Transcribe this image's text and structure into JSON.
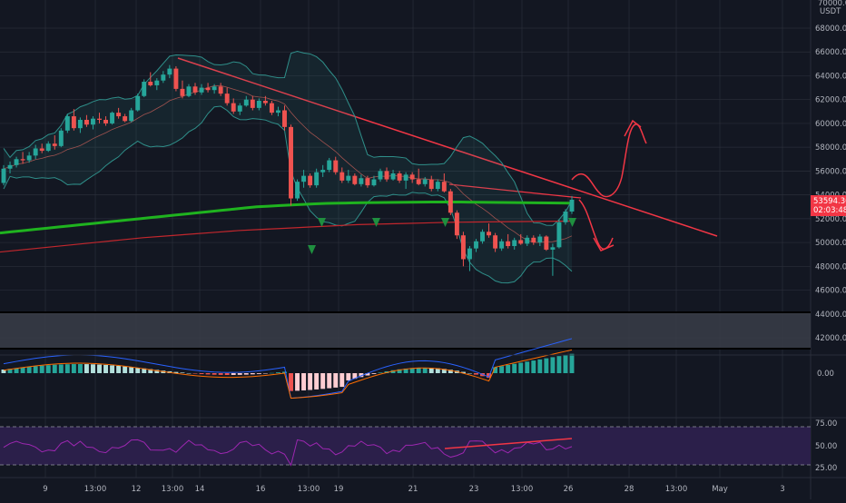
{
  "colors": {
    "background": "#131722",
    "grid": "#2a2e39",
    "up": "#26a69a",
    "down": "#ef5350",
    "trendline": "#f23645",
    "ma_green": "#1fb31f",
    "ma_red": "#c2272d",
    "bollinger": "#2f8f8a",
    "rsi_band": "#2b1f4a",
    "rsi_line": "#9c27b0",
    "price_badge": "#f23645",
    "signal_marker": "#1f8f3f"
  },
  "price_axis": {
    "title_lines": [
      "70000.00",
      "USDT"
    ],
    "ticks": [
      "68000.00",
      "66000.00",
      "64000.00",
      "62000.00",
      "60000.00",
      "58000.00",
      "56000.00",
      "54000.00",
      "52000.00",
      "50000.00",
      "48000.00",
      "46000.00",
      "44000.00",
      "42000.00"
    ],
    "current_price": "53594.36",
    "countdown": "02:03:48"
  },
  "macd_axis": {
    "ticks": [
      "0.00"
    ]
  },
  "rsi_axis": {
    "ticks": [
      "75.00",
      "50.00",
      "25.00"
    ]
  },
  "time_axis": {
    "ticks": [
      "9",
      "13:00",
      "12",
      "13:00",
      "14",
      "16",
      "13:00",
      "19",
      "21",
      "23",
      "13:00",
      "26",
      "28",
      "13:00",
      "May",
      "3"
    ]
  },
  "chart_data": {
    "type": "candlestick",
    "instrument_quote": "USDT",
    "ylim": [
      41000,
      70000
    ],
    "candles": [
      [
        55000,
        56500,
        54800,
        56200
      ],
      [
        56200,
        56800,
        55800,
        56500
      ],
      [
        56500,
        57200,
        56300,
        57000
      ],
      [
        57000,
        57600,
        56600,
        56900
      ],
      [
        56900,
        57600,
        56700,
        57300
      ],
      [
        57300,
        58200,
        57000,
        57900
      ],
      [
        57900,
        58300,
        57500,
        57700
      ],
      [
        57700,
        58500,
        57600,
        58300
      ],
      [
        58300,
        59000,
        57800,
        58100
      ],
      [
        58100,
        59600,
        58000,
        59400
      ],
      [
        59400,
        60800,
        59200,
        60600
      ],
      [
        60600,
        61200,
        59400,
        59600
      ],
      [
        59600,
        60500,
        59200,
        60300
      ],
      [
        60300,
        60700,
        59700,
        59900
      ],
      [
        59900,
        60600,
        59500,
        60400
      ],
      [
        60400,
        60900,
        60000,
        60300
      ],
      [
        60300,
        60600,
        59800,
        60000
      ],
      [
        60000,
        61000,
        59900,
        60900
      ],
      [
        60900,
        61300,
        60400,
        60600
      ],
      [
        60600,
        60800,
        60100,
        60200
      ],
      [
        60200,
        61300,
        60100,
        61100
      ],
      [
        61100,
        62500,
        61000,
        62300
      ],
      [
        62300,
        63700,
        62200,
        63500
      ],
      [
        63500,
        64300,
        63100,
        63200
      ],
      [
        63200,
        63800,
        62800,
        63600
      ],
      [
        63600,
        64400,
        63400,
        64100
      ],
      [
        64100,
        64900,
        63800,
        64600
      ],
      [
        64600,
        64800,
        62700,
        62900
      ],
      [
        62900,
        63600,
        62100,
        62300
      ],
      [
        62300,
        63300,
        62200,
        63100
      ],
      [
        63100,
        63400,
        62400,
        62600
      ],
      [
        62600,
        63300,
        62400,
        63000
      ],
      [
        63000,
        63400,
        62600,
        62800
      ],
      [
        62800,
        63300,
        62500,
        63100
      ],
      [
        63100,
        63400,
        62300,
        62500
      ],
      [
        62500,
        63000,
        61500,
        61700
      ],
      [
        61700,
        62100,
        60800,
        61000
      ],
      [
        61000,
        61700,
        60700,
        61500
      ],
      [
        61500,
        62300,
        61400,
        62000
      ],
      [
        62000,
        62300,
        61100,
        61300
      ],
      [
        61300,
        62100,
        61100,
        61900
      ],
      [
        61900,
        62300,
        61500,
        61700
      ],
      [
        61700,
        61900,
        60700,
        60900
      ],
      [
        60900,
        61400,
        60600,
        61100
      ],
      [
        61100,
        61500,
        59400,
        59700
      ],
      [
        59700,
        59900,
        53100,
        53700
      ],
      [
        53700,
        55300,
        53500,
        55100
      ],
      [
        55100,
        56100,
        54600,
        55600
      ],
      [
        55600,
        55800,
        54600,
        54800
      ],
      [
        54800,
        56200,
        54600,
        55900
      ],
      [
        55900,
        56500,
        55500,
        56100
      ],
      [
        56100,
        57100,
        55900,
        56900
      ],
      [
        56900,
        57200,
        55700,
        55900
      ],
      [
        55900,
        56300,
        55000,
        55200
      ],
      [
        55200,
        56100,
        55000,
        55600
      ],
      [
        55600,
        55800,
        54800,
        54900
      ],
      [
        54900,
        55700,
        54700,
        55400
      ],
      [
        55400,
        55600,
        54600,
        54800
      ],
      [
        54800,
        55600,
        54700,
        55300
      ],
      [
        55300,
        56200,
        55100,
        56000
      ],
      [
        56000,
        56300,
        55100,
        55300
      ],
      [
        55300,
        56100,
        55200,
        55800
      ],
      [
        55800,
        56000,
        55000,
        55200
      ],
      [
        55200,
        55900,
        54500,
        55700
      ],
      [
        55700,
        55900,
        55000,
        55300
      ],
      [
        55300,
        56200,
        54800,
        54900
      ],
      [
        54900,
        55500,
        54700,
        55300
      ],
      [
        55300,
        55600,
        54300,
        54500
      ],
      [
        54500,
        55300,
        54300,
        55100
      ],
      [
        55100,
        55800,
        54200,
        54300
      ],
      [
        54300,
        54500,
        52300,
        52500
      ],
      [
        52500,
        52700,
        50300,
        50600
      ],
      [
        50600,
        50900,
        48000,
        48600
      ],
      [
        48600,
        49700,
        47600,
        49500
      ],
      [
        49500,
        50300,
        49200,
        50100
      ],
      [
        50100,
        51100,
        49900,
        50900
      ],
      [
        50900,
        51600,
        50400,
        50600
      ],
      [
        50600,
        50800,
        49200,
        49500
      ],
      [
        49500,
        50300,
        49300,
        50100
      ],
      [
        50100,
        50700,
        49500,
        49700
      ],
      [
        49700,
        50400,
        49400,
        50200
      ],
      [
        50200,
        50700,
        49800,
        49900
      ],
      [
        49900,
        50600,
        49700,
        50400
      ],
      [
        50400,
        50600,
        49800,
        50000
      ],
      [
        50000,
        50700,
        49700,
        50500
      ],
      [
        50500,
        50600,
        49300,
        49400
      ],
      [
        49400,
        49900,
        47200,
        49600
      ],
      [
        49600,
        51900,
        49500,
        51700
      ],
      [
        51700,
        52800,
        51500,
        52600
      ],
      [
        52600,
        53900,
        52400,
        53594.36
      ]
    ],
    "moving_average_200": [
      50800,
      50900,
      51000,
      51100,
      51200,
      51300,
      51400,
      51500,
      51600,
      51700,
      51800,
      51900,
      52000,
      52100,
      52200,
      52300,
      52400,
      52500,
      52600,
      52700,
      52800,
      52900,
      53000,
      53050,
      53100,
      53150,
      53200,
      53250,
      53280,
      53300,
      53320,
      53340,
      53350,
      53360,
      53370,
      53380,
      53390,
      53400,
      53400,
      53400,
      53390,
      53380,
      53370,
      53360,
      53350,
      53340,
      53330,
      53320,
      53310,
      53300
    ],
    "moving_average_red": [
      49200,
      49400,
      49600,
      49800,
      50000,
      50200,
      50400,
      50550,
      50700,
      50850,
      51000,
      51100,
      51200,
      51300,
      51400,
      51500,
      51550,
      51600,
      51650,
      51700,
      51720,
      51740,
      51760,
      51780,
      51800
    ],
    "macd_axis_tick": "0.00",
    "rsi_levels": [
      75,
      50,
      25
    ]
  }
}
